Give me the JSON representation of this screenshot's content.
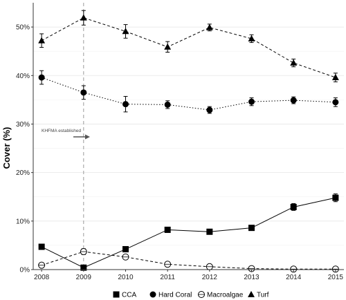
{
  "chart_data": {
    "type": "line",
    "ylabel": "Cover (%)",
    "x": [
      2008,
      2009,
      2010,
      2011,
      2012,
      2013,
      2014,
      2015
    ],
    "x_tick_labels": [
      "2008",
      "2009",
      "2010",
      "2011",
      "2012",
      "2013",
      "2014",
      "2015"
    ],
    "ylim": [
      0,
      55
    ],
    "y_ticks": [
      0,
      10,
      20,
      30,
      40,
      50
    ],
    "y_tick_labels": [
      "0%",
      "10%",
      "20%",
      "30%",
      "40%",
      "50%"
    ],
    "grid": true,
    "legend_position": "bottom",
    "series": [
      {
        "name": "CCA",
        "marker": "square",
        "line": "solid",
        "values": [
          4.7,
          0.4,
          4.2,
          8.2,
          7.8,
          8.6,
          12.9,
          14.8
        ],
        "errors": [
          0.3,
          0.3,
          0.3,
          0.4,
          0.4,
          0.4,
          0.7,
          0.8
        ]
      },
      {
        "name": "Hard Coral",
        "marker": "circle",
        "line": "dotted",
        "values": [
          39.6,
          36.5,
          34.1,
          34.0,
          32.9,
          34.6,
          34.9,
          34.5
        ],
        "errors": [
          1.4,
          1.4,
          1.6,
          0.8,
          0.7,
          0.8,
          0.7,
          0.9
        ]
      },
      {
        "name": "Macroalgae",
        "marker": "open-circle",
        "line": "dashed",
        "values": [
          0.9,
          3.7,
          2.6,
          1.1,
          0.6,
          0.2,
          0.1,
          0.1
        ],
        "errors": [
          0.2,
          0.6,
          0.5,
          0.2,
          0.1,
          0.1,
          0.05,
          0.05
        ]
      },
      {
        "name": "Turf",
        "marker": "triangle",
        "line": "dashed",
        "values": [
          47.2,
          51.9,
          49.1,
          45.9,
          49.9,
          47.6,
          42.6,
          39.6
        ],
        "errors": [
          1.4,
          1.5,
          1.4,
          1.1,
          0.7,
          0.8,
          0.8,
          0.9
        ]
      }
    ],
    "annotations": [
      {
        "text": "KHFMA established",
        "x": 2009,
        "marker_line": "vertical-dashed",
        "arrow": true
      }
    ]
  }
}
